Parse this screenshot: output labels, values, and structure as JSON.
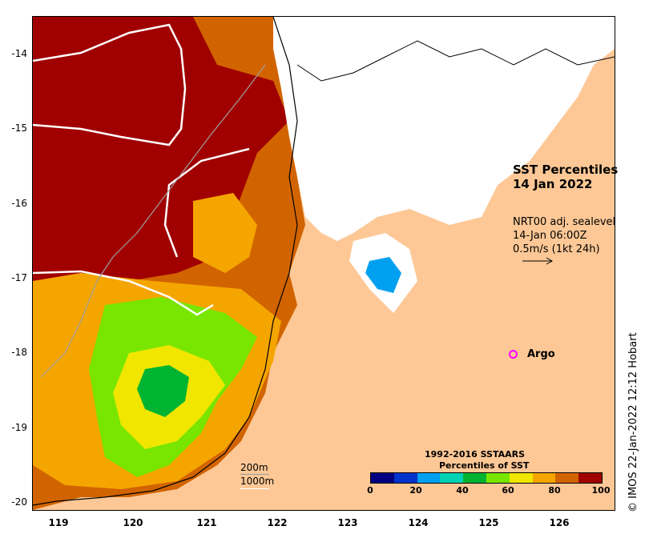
{
  "map": {
    "title_line1": "SST Percentiles",
    "title_line2": "14 Jan 2022",
    "product_line1": "NRT00 adj. sealevel",
    "product_line2": "14-Jan 06:00Z",
    "product_line3": "0.5m/s (1kt 24h)",
    "lon_ticks": [
      "119",
      "120",
      "121",
      "122",
      "123",
      "124",
      "125",
      "126"
    ],
    "lat_ticks": [
      "-14",
      "-15",
      "-16",
      "-17",
      "-18",
      "-19",
      "-20"
    ],
    "argo_label": "Argo",
    "depth_200_label": "200m",
    "depth_1000_label": "1000m",
    "credit": "© IMOS 22-Jan-2022 12:12 Hobart",
    "colors": {
      "ocean_land": "#fdc896",
      "argo": "#ff00ff"
    }
  },
  "legend": {
    "title_line1": "1992-2016 SSTAARS",
    "title_line2": "Percentiles of SST",
    "tick_labels": [
      "0",
      "20",
      "40",
      "60",
      "80",
      "100"
    ],
    "colors": [
      "#000080",
      "#0033cc",
      "#00a0f0",
      "#00d2b4",
      "#00b432",
      "#78e600",
      "#f0e600",
      "#f5a500",
      "#d26400",
      "#a00000"
    ]
  }
}
